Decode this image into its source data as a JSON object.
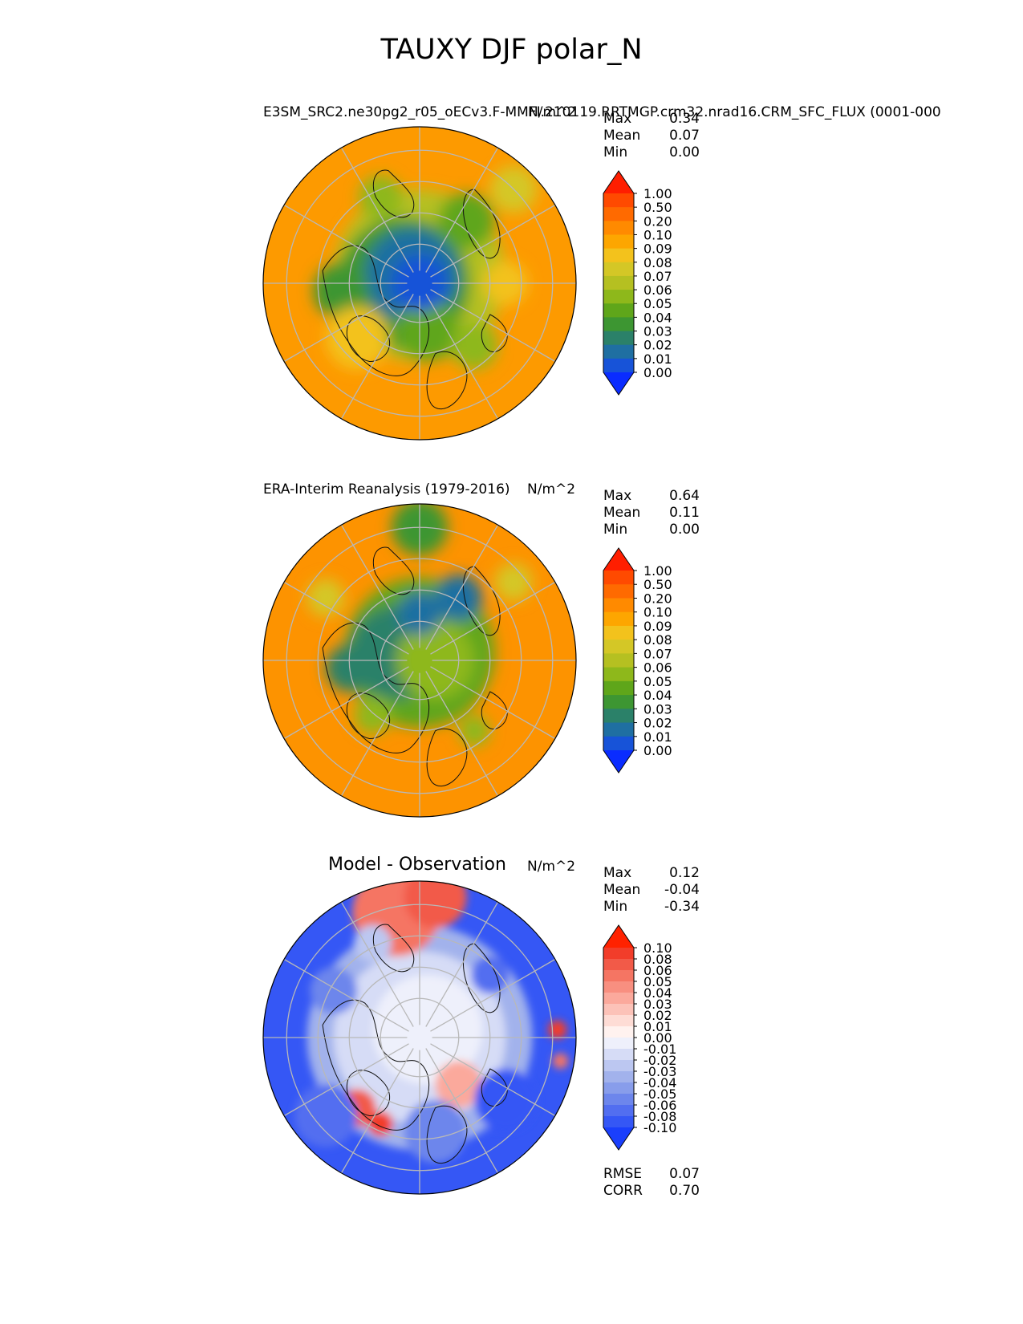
{
  "figure": {
    "title": "TAUXY DJF polar_N"
  },
  "chart_data": [
    {
      "type": "heatmap",
      "projection": "north-polar-stereographic",
      "title": "E3SM_SRC2.ne30pg2_r05_oECv3.F-MMFI.210119.RRTMGP.crm32.nrad16.CRM_SFC_FLUX (0001-000",
      "units": "N/m^2",
      "stats": {
        "max": "0.34",
        "mean": "0.07",
        "min": "0.00"
      },
      "stat_labels": {
        "max": "Max",
        "mean": "Mean",
        "min": "Min"
      },
      "colorbar_ticks": [
        "1.00",
        "0.50",
        "0.20",
        "0.10",
        "0.09",
        "0.08",
        "0.07",
        "0.06",
        "0.05",
        "0.04",
        "0.03",
        "0.02",
        "0.01",
        "0.00"
      ],
      "colorbar_colors": [
        "#ff1e00",
        "#ff4a00",
        "#ff6a00",
        "#ff8a00",
        "#fda600",
        "#f3c21c",
        "#d4c726",
        "#b5c021",
        "#8eb81b",
        "#5fa61a",
        "#3d9632",
        "#2b8169",
        "#1f6fa2",
        "#1753d8",
        "#0a2cff"
      ],
      "extend": "both"
    },
    {
      "type": "heatmap",
      "projection": "north-polar-stereographic",
      "title": "ERA-Interim Reanalysis (1979-2016)",
      "units": "N/m^2",
      "stats": {
        "max": "0.64",
        "mean": "0.11",
        "min": "0.00"
      },
      "stat_labels": {
        "max": "Max",
        "mean": "Mean",
        "min": "Min"
      },
      "colorbar_ticks": [
        "1.00",
        "0.50",
        "0.20",
        "0.10",
        "0.09",
        "0.08",
        "0.07",
        "0.06",
        "0.05",
        "0.04",
        "0.03",
        "0.02",
        "0.01",
        "0.00"
      ],
      "colorbar_colors": [
        "#ff1e00",
        "#ff4a00",
        "#ff6a00",
        "#ff8a00",
        "#fda600",
        "#f3c21c",
        "#d4c726",
        "#b5c021",
        "#8eb81b",
        "#5fa61a",
        "#3d9632",
        "#2b8169",
        "#1f6fa2",
        "#1753d8",
        "#0a2cff"
      ],
      "extend": "both"
    },
    {
      "type": "heatmap",
      "projection": "north-polar-stereographic",
      "title": "Model - Observation",
      "units": "N/m^2",
      "stats": {
        "max": "0.12",
        "mean": "-0.04",
        "min": "-0.34"
      },
      "stat_labels": {
        "max": "Max",
        "mean": "Mean",
        "min": "Min"
      },
      "metrics": {
        "rmse": "0.07",
        "corr": "0.70"
      },
      "metric_labels": {
        "rmse": "RMSE",
        "corr": "CORR"
      },
      "colorbar_ticks": [
        "0.10",
        "0.08",
        "0.06",
        "0.05",
        "0.04",
        "0.03",
        "0.02",
        "0.01",
        "0.00",
        "-0.01",
        "-0.02",
        "-0.03",
        "-0.04",
        "-0.05",
        "-0.06",
        "-0.08",
        "-0.10"
      ],
      "colorbar_colors": [
        "#ff2200",
        "#f23d2a",
        "#f25a48",
        "#f57563",
        "#f88f80",
        "#fba99c",
        "#fcc2b8",
        "#fedcd5",
        "#fff2ef",
        "#eef0fb",
        "#d6dcf6",
        "#bcc7f1",
        "#a2b2ec",
        "#889deb",
        "#6d86ec",
        "#526ef0",
        "#3557f5",
        "#1a3ffc"
      ],
      "extend": "both"
    }
  ]
}
